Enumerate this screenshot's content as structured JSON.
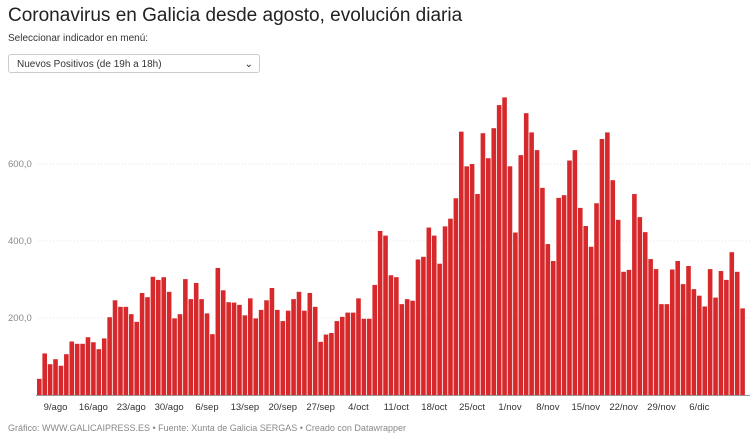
{
  "title": "Coronavirus en Galicia desde agosto, evolución diaria",
  "selector": {
    "label": "Seleccionar indicador en menú:",
    "selected": "Nuevos Positivos (de 19h a 18h)",
    "icon": "chevron-down-icon"
  },
  "footer": "Gráfico: WWW.GALICAIPRESS.ES • Fuente: Xunta de Galicia SERGAS • Creado con Datawrapper",
  "chart_data": {
    "type": "bar",
    "title": "",
    "xlabel": "",
    "ylabel": "",
    "bar_color": "#d7292b",
    "x_start": "6/ago",
    "x_end": "14/dic",
    "ylim": [
      0,
      800
    ],
    "y_ticks": [
      {
        "value": 200,
        "label": "200,0"
      },
      {
        "value": 400,
        "label": "400,0"
      },
      {
        "value": 600,
        "label": "600,0"
      }
    ],
    "x_ticks": [
      {
        "index": 3,
        "label": "9/ago"
      },
      {
        "index": 10,
        "label": "16/ago"
      },
      {
        "index": 17,
        "label": "23/ago"
      },
      {
        "index": 24,
        "label": "30/ago"
      },
      {
        "index": 31,
        "label": "6/sep"
      },
      {
        "index": 38,
        "label": "13/sep"
      },
      {
        "index": 45,
        "label": "20/sep"
      },
      {
        "index": 52,
        "label": "27/sep"
      },
      {
        "index": 59,
        "label": "4/oct"
      },
      {
        "index": 66,
        "label": "11/oct"
      },
      {
        "index": 73,
        "label": "18/oct"
      },
      {
        "index": 80,
        "label": "25/oct"
      },
      {
        "index": 87,
        "label": "1/nov"
      },
      {
        "index": 94,
        "label": "8/nov"
      },
      {
        "index": 101,
        "label": "15/nov"
      },
      {
        "index": 108,
        "label": "22/nov"
      },
      {
        "index": 115,
        "label": "29/nov"
      },
      {
        "index": 122,
        "label": "6/dic"
      }
    ],
    "values": [
      42,
      108,
      80,
      93,
      76,
      106,
      139,
      133,
      133,
      150,
      137,
      119,
      147,
      202,
      246,
      229,
      229,
      210,
      190,
      265,
      254,
      307,
      299,
      306,
      268,
      199,
      210,
      301,
      249,
      291,
      249,
      212,
      158,
      330,
      272,
      241,
      240,
      234,
      207,
      251,
      199,
      221,
      246,
      278,
      221,
      192,
      219,
      249,
      268,
      219,
      265,
      229,
      138,
      157,
      161,
      192,
      203,
      214,
      214,
      251,
      198,
      198,
      286,
      426,
      414,
      311,
      306,
      236,
      249,
      245,
      352,
      359,
      435,
      414,
      341,
      438,
      458,
      511,
      684,
      594,
      600,
      522,
      680,
      615,
      693,
      753,
      773,
      594,
      422,
      623,
      732,
      682,
      636,
      538,
      392,
      348,
      512,
      519,
      609,
      636,
      486,
      439,
      385,
      498,
      665,
      682,
      558,
      455,
      320,
      325,
      522,
      462,
      423,
      353,
      327,
      236,
      236,
      326,
      348,
      288,
      335,
      275,
      258,
      230,
      327,
      253,
      322,
      299,
      371,
      320,
      225
    ]
  }
}
